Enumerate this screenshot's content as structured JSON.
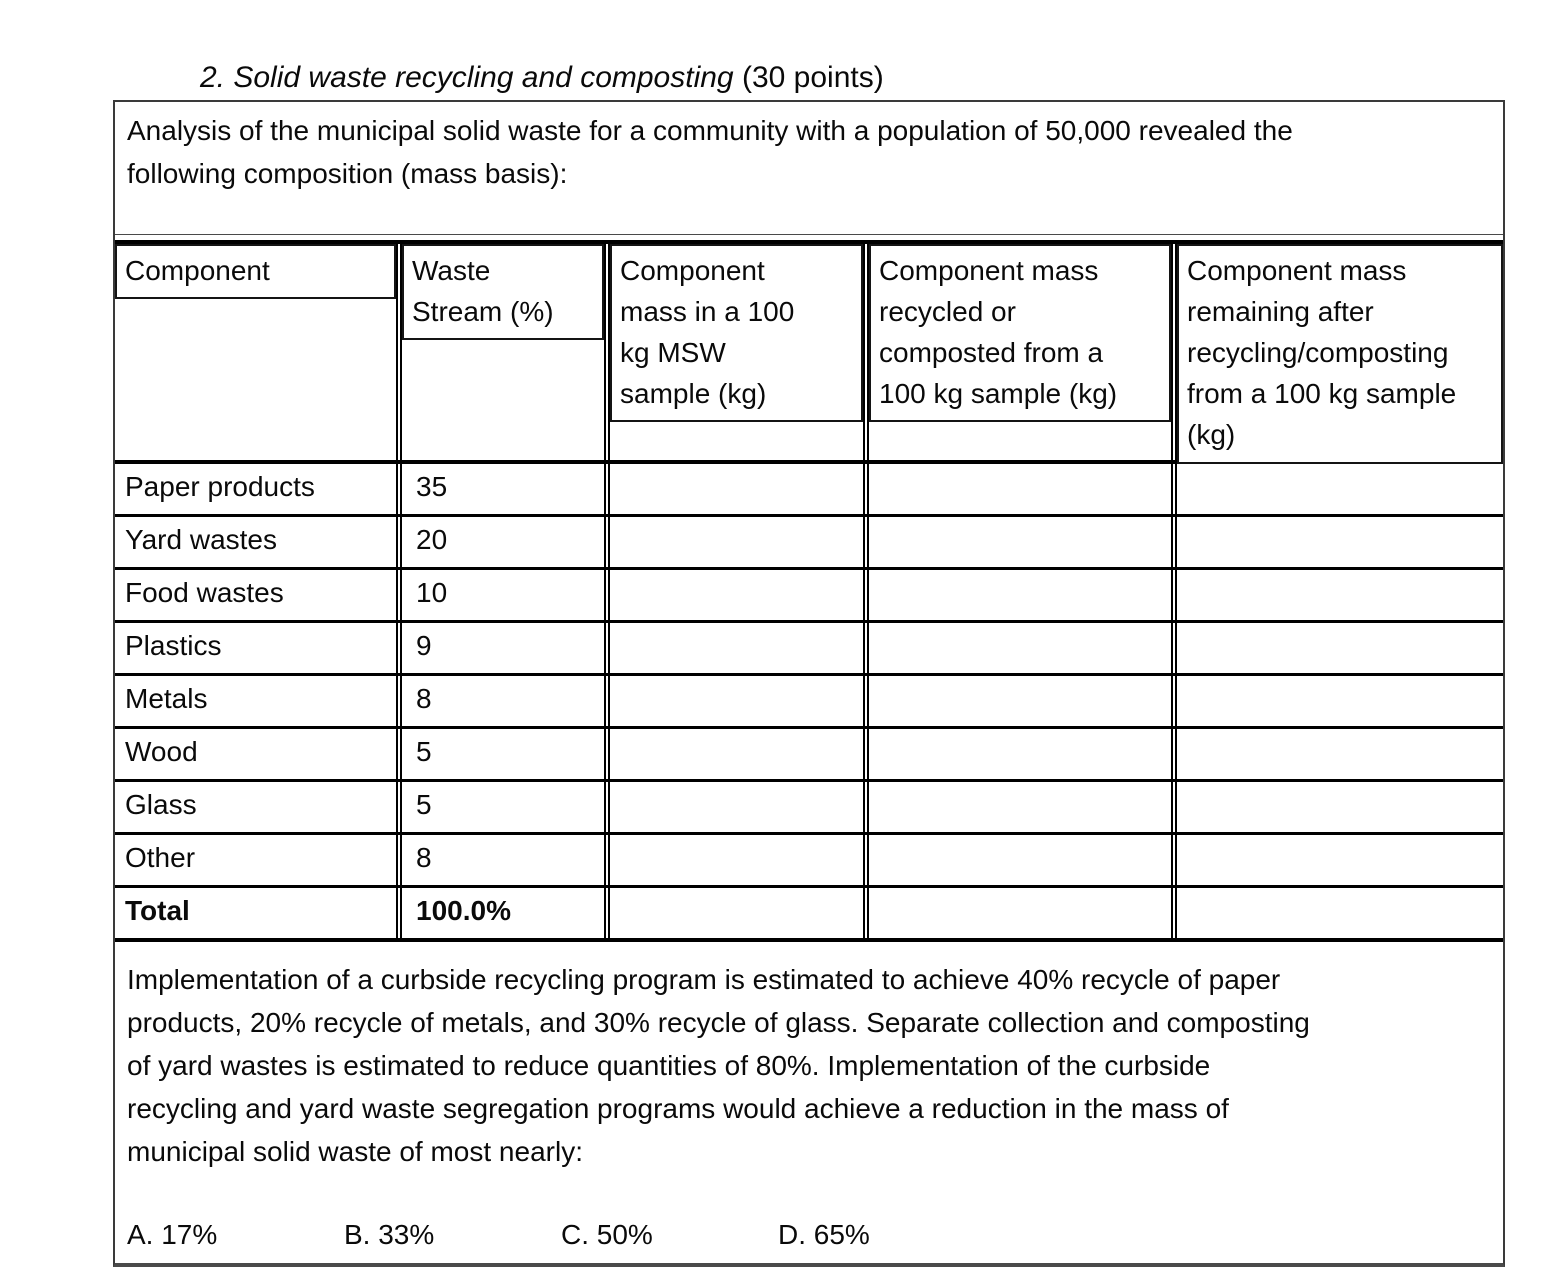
{
  "page": {
    "title_main": "2. Solid waste recycling and composting",
    "title_points": " (30 points)"
  },
  "intro": {
    "text": "Analysis of the municipal solid waste for a community with a population of 50,000 revealed the\nfollowing composition (mass basis):"
  },
  "table": {
    "headers": [
      {
        "label": "Component"
      },
      {
        "label": "Waste\nStream (%)"
      },
      {
        "label": "Component\nmass in a 100\nkg MSW\nsample (kg)"
      },
      {
        "label": "Component mass\nrecycled or\ncomposted from a\n100 kg sample (kg)"
      },
      {
        "label": "Component mass\nremaining after\nrecycling/composting\nfrom a 100 kg sample\n(kg)"
      }
    ],
    "rows": [
      {
        "component": "Paper products",
        "waste_stream": "35",
        "mass_sample": "",
        "mass_recycled": "",
        "mass_remaining": ""
      },
      {
        "component": "Yard wastes",
        "waste_stream": "20",
        "mass_sample": "",
        "mass_recycled": "",
        "mass_remaining": ""
      },
      {
        "component": "Food wastes",
        "waste_stream": "10",
        "mass_sample": "",
        "mass_recycled": "",
        "mass_remaining": ""
      },
      {
        "component": "Plastics",
        "waste_stream": "9",
        "mass_sample": "",
        "mass_recycled": "",
        "mass_remaining": ""
      },
      {
        "component": "Metals",
        "waste_stream": "8",
        "mass_sample": "",
        "mass_recycled": "",
        "mass_remaining": ""
      },
      {
        "component": "Wood",
        "waste_stream": "5",
        "mass_sample": "",
        "mass_recycled": "",
        "mass_remaining": ""
      },
      {
        "component": "Glass",
        "waste_stream": "5",
        "mass_sample": "",
        "mass_recycled": "",
        "mass_remaining": ""
      },
      {
        "component": "Other",
        "waste_stream": "8",
        "mass_sample": "",
        "mass_recycled": "",
        "mass_remaining": ""
      },
      {
        "component": "Total",
        "waste_stream": "100.0%",
        "mass_sample": "",
        "mass_recycled": "",
        "mass_remaining": ""
      }
    ]
  },
  "question": {
    "text": "Implementation of a curbside recycling program is estimated to achieve 40% recycle of paper\nproducts, 20% recycle of metals, and 30% recycle of glass. Separate collection and composting\nof yard wastes is estimated to reduce quantities of 80%. Implementation of the curbside\nrecycling and yard waste segregation programs would achieve a reduction in the mass of\nmunicipal solid waste of most nearly:",
    "choices": [
      "A. 17%",
      "B. 33%",
      "C. 50%",
      "D. 65%"
    ]
  }
}
